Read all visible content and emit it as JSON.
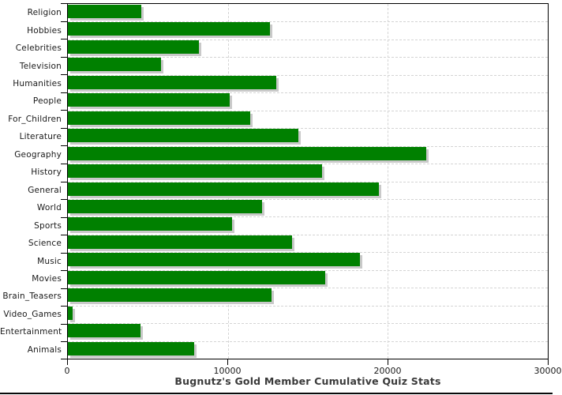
{
  "chart_data": {
    "type": "bar",
    "orientation": "horizontal",
    "title": "Bugnutz's Gold Member Cumulative Quiz Stats",
    "categories": [
      "Religion",
      "Hobbies",
      "Celebrities",
      "Television",
      "Humanities",
      "People",
      "For_Children",
      "Literature",
      "Geography",
      "History",
      "General",
      "World",
      "Sports",
      "Science",
      "Music",
      "Movies",
      "Brain_Teasers",
      "Video_Games",
      "Entertainment",
      "Animals"
    ],
    "values": [
      4600,
      12650,
      8200,
      5800,
      13050,
      10100,
      11400,
      14400,
      22400,
      15900,
      19450,
      12150,
      10250,
      14000,
      18250,
      16100,
      12750,
      300,
      4550,
      7900
    ],
    "xlabel": "",
    "ylabel": "",
    "xlim": [
      0,
      30000
    ],
    "x_ticks": [
      0,
      10000,
      20000,
      30000
    ],
    "x_tick_labels": [
      "0",
      "10000",
      "20000",
      "30000"
    ],
    "grid": true,
    "legend": null,
    "colors": {
      "bar": "#008000",
      "bar_shadow": "#c9c9c9",
      "grid": "#d4d4d4",
      "axis": "#000000",
      "label_text": "#1a1a1a",
      "title_text": "#3a3a3a",
      "background": "#ffffff"
    }
  }
}
